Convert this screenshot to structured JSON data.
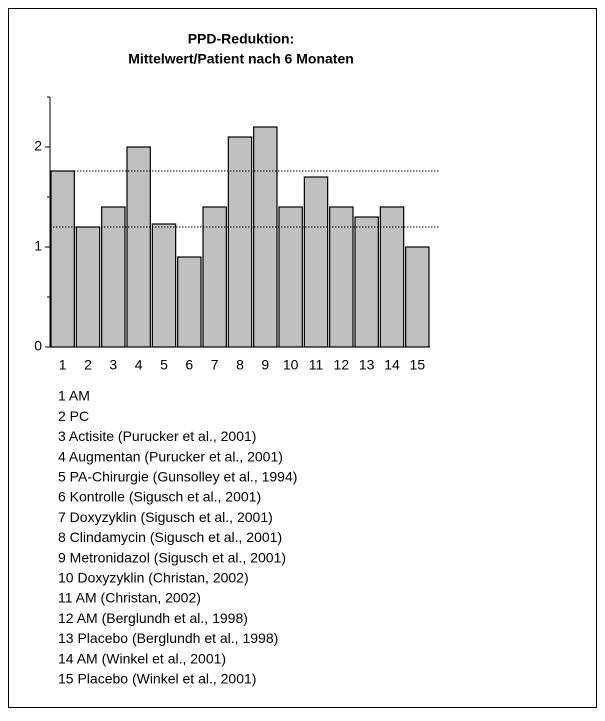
{
  "chart_data": {
    "type": "bar",
    "title": "PPD-Reduktion:",
    "subtitle": "Mittelwert/Patient nach 6 Monaten",
    "categories": [
      "1",
      "2",
      "3",
      "4",
      "5",
      "6",
      "7",
      "8",
      "9",
      "10",
      "11",
      "12",
      "13",
      "14",
      "15"
    ],
    "values": [
      1.76,
      1.2,
      1.4,
      2.0,
      1.23,
      0.9,
      1.4,
      2.1,
      2.2,
      1.4,
      1.7,
      1.4,
      1.3,
      1.4,
      1.0
    ],
    "color": "#c0c0c0",
    "ylim": [
      0,
      2.5
    ],
    "yticks": [
      0,
      1,
      2
    ],
    "minor_yticks": [
      0.5,
      1.5,
      2.5
    ],
    "reference_lines": [
      1.76,
      1.2
    ],
    "legend": [
      "1 AM",
      "2 PC",
      "3 Actisite (Purucker et al., 2001)",
      "4 Augmentan (Purucker et al., 2001)",
      "5 PA-Chirurgie (Gunsolley et al., 1994)",
      "6 Kontrolle (Sigusch et al., 2001)",
      "7 Doxyzyklin (Sigusch et al., 2001)",
      "8 Clindamycin (Sigusch et al., 2001)",
      "9 Metronidazol (Sigusch et al., 2001)",
      "10 Doxyzyklin (Christan, 2002)",
      "11 AM (Christan, 2002)",
      "12 AM (Berglundh et al., 1998)",
      "13 Placebo (Berglundh et al., 1998)",
      "14 AM (Winkel et al., 2001)",
      "15 Placebo (Winkel et al., 2001)"
    ]
  }
}
